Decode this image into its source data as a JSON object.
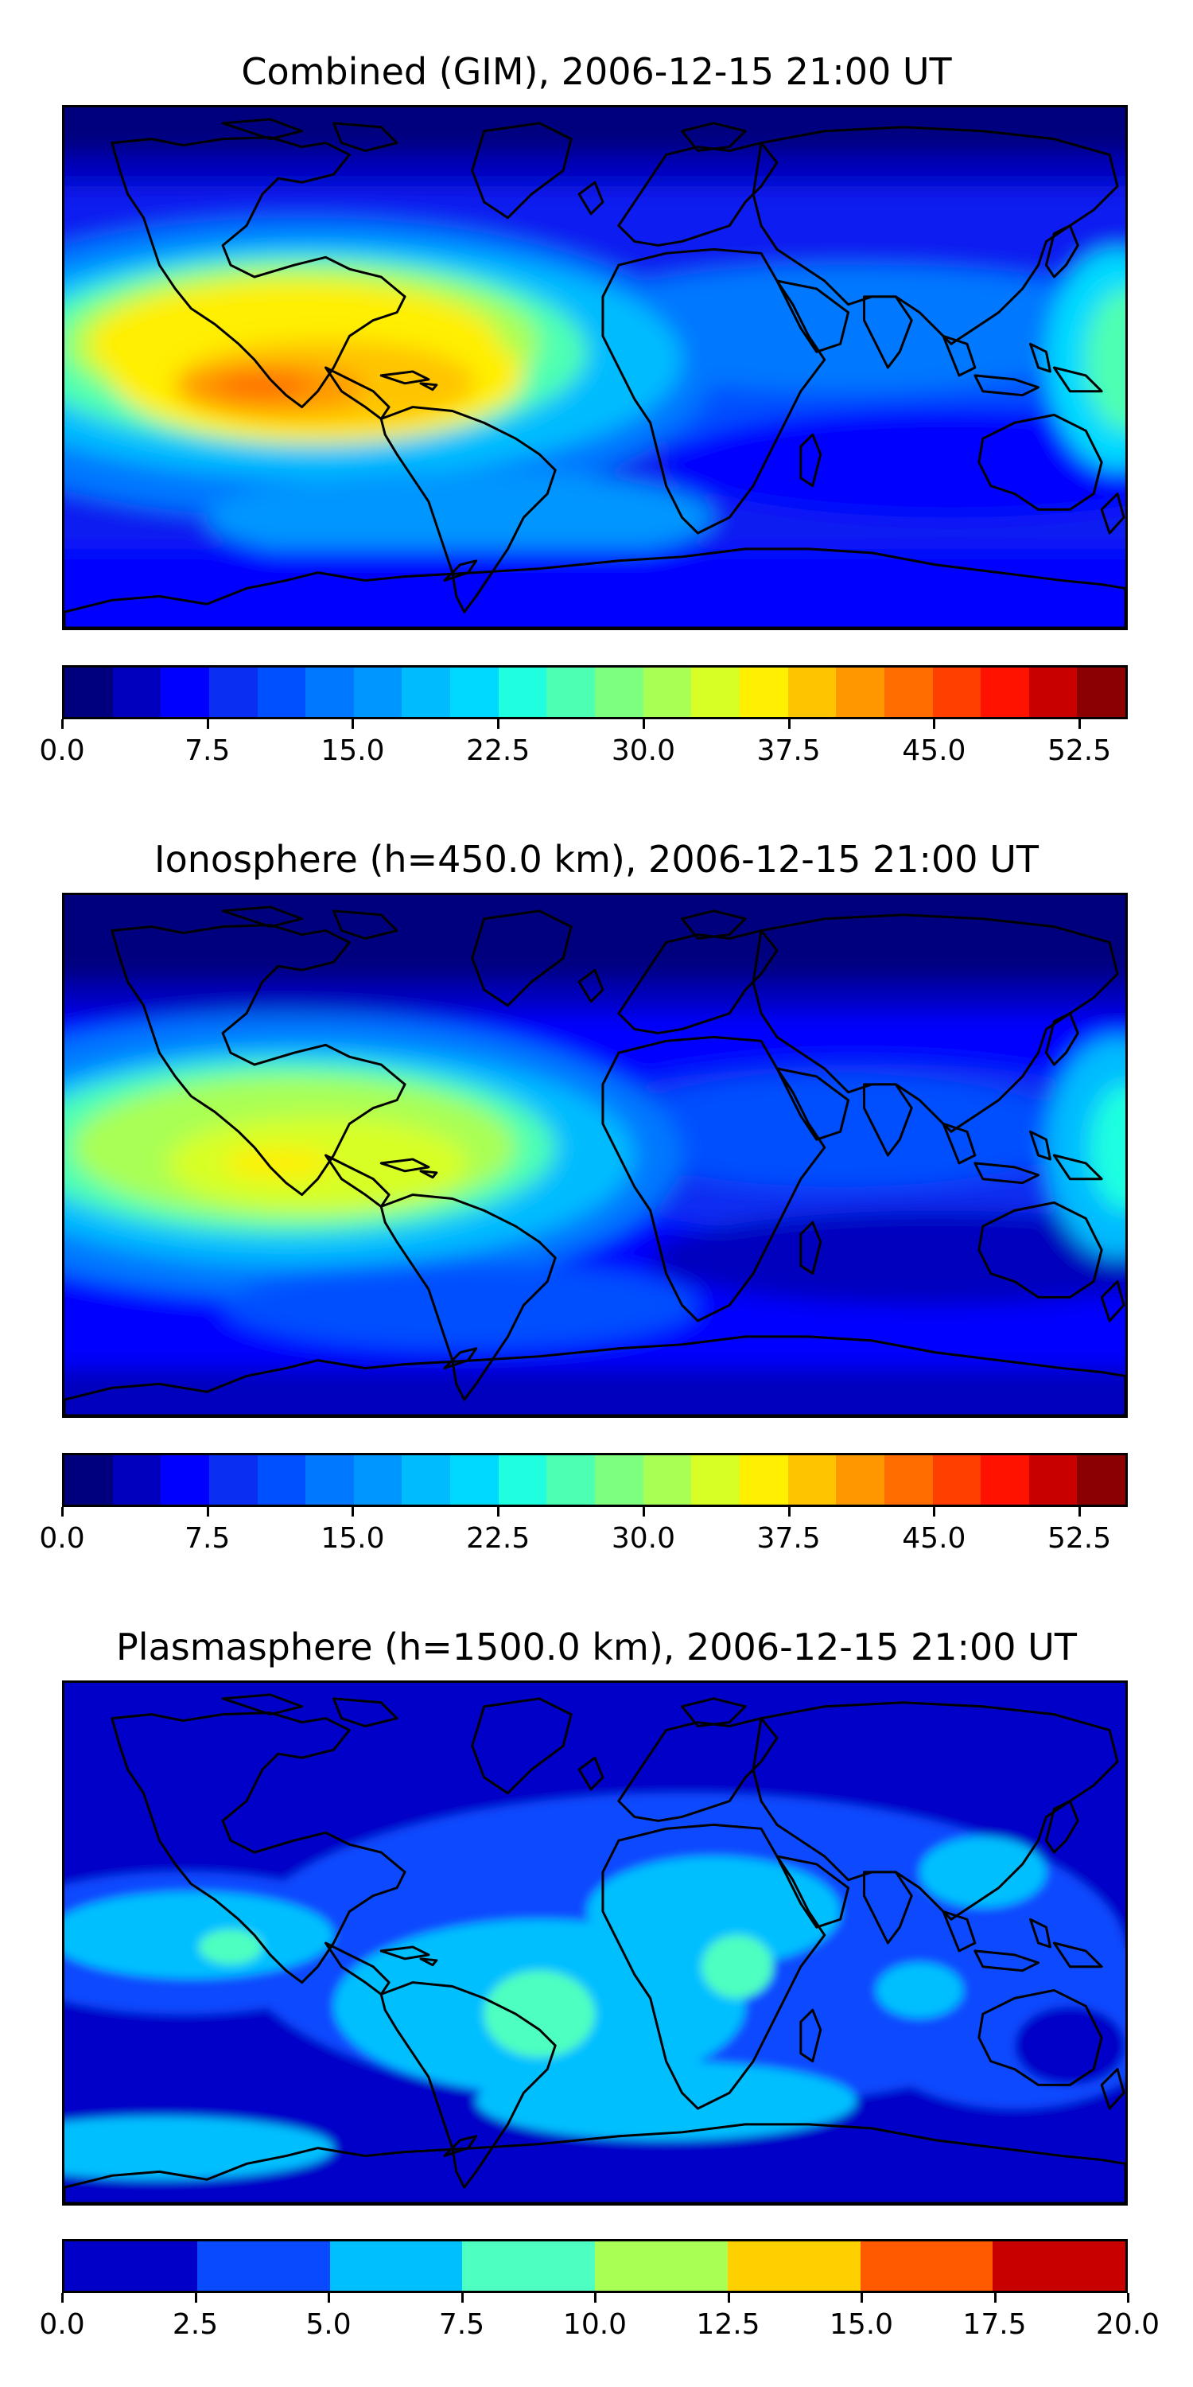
{
  "panels": [
    {
      "title": "Combined (GIM), 2006-12-15 21:00 UT",
      "kind": "combined",
      "colorbar": {
        "colors": [
          "#00007f",
          "#0000bd",
          "#0000ff",
          "#0a2ef2",
          "#0050ff",
          "#0078ff",
          "#0096ff",
          "#00bcff",
          "#00d9ff",
          "#1fffe0",
          "#4dffb2",
          "#7dff80",
          "#a9ff54",
          "#d7ff26",
          "#ffef00",
          "#ffc400",
          "#ff9800",
          "#ff6c00",
          "#ff3f00",
          "#ff1300",
          "#c80000",
          "#8b0000"
        ],
        "ticks": [
          "0.0",
          "7.5",
          "15.0",
          "22.5",
          "30.0",
          "37.5",
          "45.0",
          "52.5"
        ],
        "tick_values": [
          0,
          7.5,
          15,
          22.5,
          30,
          37.5,
          45,
          52.5
        ],
        "range": [
          0,
          55
        ]
      }
    },
    {
      "title": "Ionosphere  (h=450.0 km), 2006-12-15 21:00 UT",
      "kind": "ionosphere",
      "colorbar": {
        "colors": [
          "#00007f",
          "#0000bd",
          "#0000ff",
          "#0a2ef2",
          "#0050ff",
          "#0078ff",
          "#0096ff",
          "#00bcff",
          "#00d9ff",
          "#1fffe0",
          "#4dffb2",
          "#7dff80",
          "#a9ff54",
          "#d7ff26",
          "#ffef00",
          "#ffc400",
          "#ff9800",
          "#ff6c00",
          "#ff3f00",
          "#ff1300",
          "#c80000",
          "#8b0000"
        ],
        "ticks": [
          "0.0",
          "7.5",
          "15.0",
          "22.5",
          "30.0",
          "37.5",
          "45.0",
          "52.5"
        ],
        "tick_values": [
          0,
          7.5,
          15,
          22.5,
          30,
          37.5,
          45,
          52.5
        ],
        "range": [
          0,
          55
        ]
      }
    },
    {
      "title": "Plasmasphere (h=1500.0 km), 2006-12-15 21:00 UT",
      "kind": "plasmasphere",
      "colorbar": {
        "colors": [
          "#0000c8",
          "#0a4aff",
          "#00bfff",
          "#4dffc0",
          "#a9ff54",
          "#ffd000",
          "#ff5a00",
          "#c80000"
        ],
        "ticks": [
          "0.0",
          "2.5",
          "5.0",
          "7.5",
          "10.0",
          "12.5",
          "15.0",
          "17.5",
          "20.0"
        ],
        "tick_values": [
          0,
          2.5,
          5,
          7.5,
          10,
          12.5,
          15,
          17.5,
          20
        ],
        "range": [
          0,
          20
        ]
      }
    }
  ]
}
